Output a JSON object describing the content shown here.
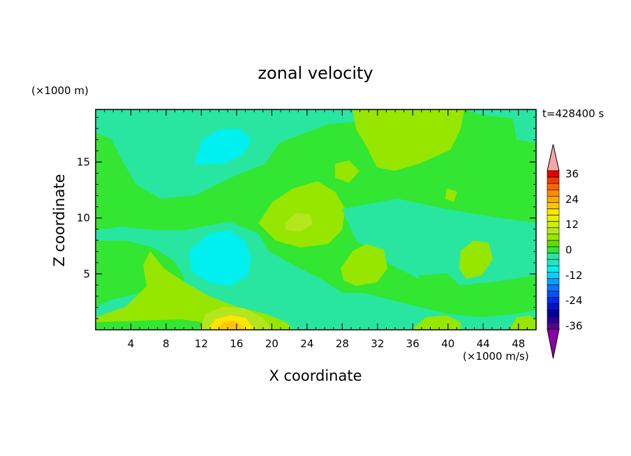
{
  "chart_data": {
    "type": "heatmap",
    "title": "zonal velocity",
    "time_label": "t=428400 s",
    "xlabel": "X coordinate",
    "ylabel": "Z coordinate",
    "x_unit": "(×1000 m/s)",
    "z_unit": "(×1000 m)",
    "xlim": [
      0,
      50
    ],
    "ylim": [
      0,
      19.7
    ],
    "x_ticks": [
      4,
      8,
      12,
      16,
      20,
      24,
      28,
      32,
      36,
      40,
      44,
      48
    ],
    "y_ticks": [
      5,
      10,
      15
    ],
    "colorbar": {
      "ticks": [
        36,
        24,
        12,
        0,
        -12,
        -24,
        -36
      ],
      "levels": [
        {
          "value": 42,
          "color": "#f4a6a6"
        },
        {
          "value": 36,
          "color": "#e60000"
        },
        {
          "value": 33,
          "color": "#f03c00"
        },
        {
          "value": 30,
          "color": "#ff6400"
        },
        {
          "value": 27,
          "color": "#ff8c00"
        },
        {
          "value": 24,
          "color": "#ffaa00"
        },
        {
          "value": 21,
          "color": "#ffc800"
        },
        {
          "value": 18,
          "color": "#ffe600"
        },
        {
          "value": 15,
          "color": "#e6f000"
        },
        {
          "value": 12,
          "color": "#c8f000"
        },
        {
          "value": 9,
          "color": "#b4e61e"
        },
        {
          "value": 6,
          "color": "#96e600"
        },
        {
          "value": 3,
          "color": "#64dc00"
        },
        {
          "value": 0,
          "color": "#32e632"
        },
        {
          "value": -3,
          "color": "#28e6a0"
        },
        {
          "value": -6,
          "color": "#1ee6c8"
        },
        {
          "value": -9,
          "color": "#00f0f0"
        },
        {
          "value": -12,
          "color": "#00d2ff"
        },
        {
          "value": -15,
          "color": "#00a0ff"
        },
        {
          "value": -18,
          "color": "#0078ff"
        },
        {
          "value": -21,
          "color": "#0050ff"
        },
        {
          "value": -24,
          "color": "#0028f0"
        },
        {
          "value": -27,
          "color": "#0014c8"
        },
        {
          "value": -30,
          "color": "#0000a0"
        },
        {
          "value": -33,
          "color": "#280096"
        },
        {
          "value": -36,
          "color": "#5a0096"
        },
        {
          "value": -42,
          "color": "#8c00aa"
        }
      ]
    },
    "field_colors": {
      "green": "#32e632",
      "light_green": "#96e600",
      "yellow_green": "#b4e61e",
      "seafoam": "#28e6a0",
      "aqua": "#1ee6c8",
      "cyan": "#00f0f0",
      "yellow": "#ffe600",
      "orange": "#ffc800"
    }
  }
}
